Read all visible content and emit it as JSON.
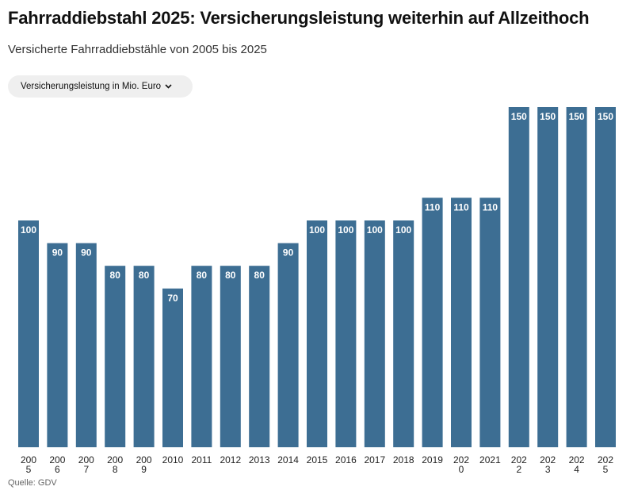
{
  "header": {
    "title": "Fahrraddiebstahl 2025: Versicherungsleistung weiterhin auf Allzeithoch",
    "subtitle": "Versicherte Fahrraddiebstähle von 2005 bis 2025"
  },
  "controls": {
    "metric_select_label": "Versicherungsleistung in Mio. Euro",
    "chevron_icon": "chevron-down-icon"
  },
  "footer": {
    "source": "Quelle: GDV"
  },
  "colors": {
    "bar": "#3d6e93",
    "bar_label": "#ffffff",
    "tick_label": "#222222"
  },
  "chart_data": {
    "type": "bar",
    "categories": [
      "2005",
      "2006",
      "2007",
      "2008",
      "2009",
      "2010",
      "2011",
      "2012",
      "2013",
      "2014",
      "2015",
      "2016",
      "2017",
      "2018",
      "2019",
      "2020",
      "2021",
      "2022",
      "2023",
      "2024",
      "2025"
    ],
    "tick_labels": [
      [
        "200",
        "5"
      ],
      [
        "200",
        "6"
      ],
      [
        "200",
        "7"
      ],
      [
        "200",
        "8"
      ],
      [
        "200",
        "9"
      ],
      [
        "2010"
      ],
      [
        "2011"
      ],
      [
        "2012"
      ],
      [
        "2013"
      ],
      [
        "2014"
      ],
      [
        "2015"
      ],
      [
        "2016"
      ],
      [
        "2017"
      ],
      [
        "2018"
      ],
      [
        "2019"
      ],
      [
        "202",
        "0"
      ],
      [
        "2021"
      ],
      [
        "202",
        "2"
      ],
      [
        "202",
        "3"
      ],
      [
        "202",
        "4"
      ],
      [
        "202",
        "5"
      ]
    ],
    "values": [
      100,
      90,
      90,
      80,
      80,
      70,
      80,
      80,
      80,
      90,
      100,
      100,
      100,
      100,
      110,
      110,
      110,
      150,
      150,
      150,
      150
    ],
    "ylim": [
      0,
      150
    ],
    "grid": false,
    "legend": "none",
    "xlabel": "",
    "ylabel": ""
  }
}
